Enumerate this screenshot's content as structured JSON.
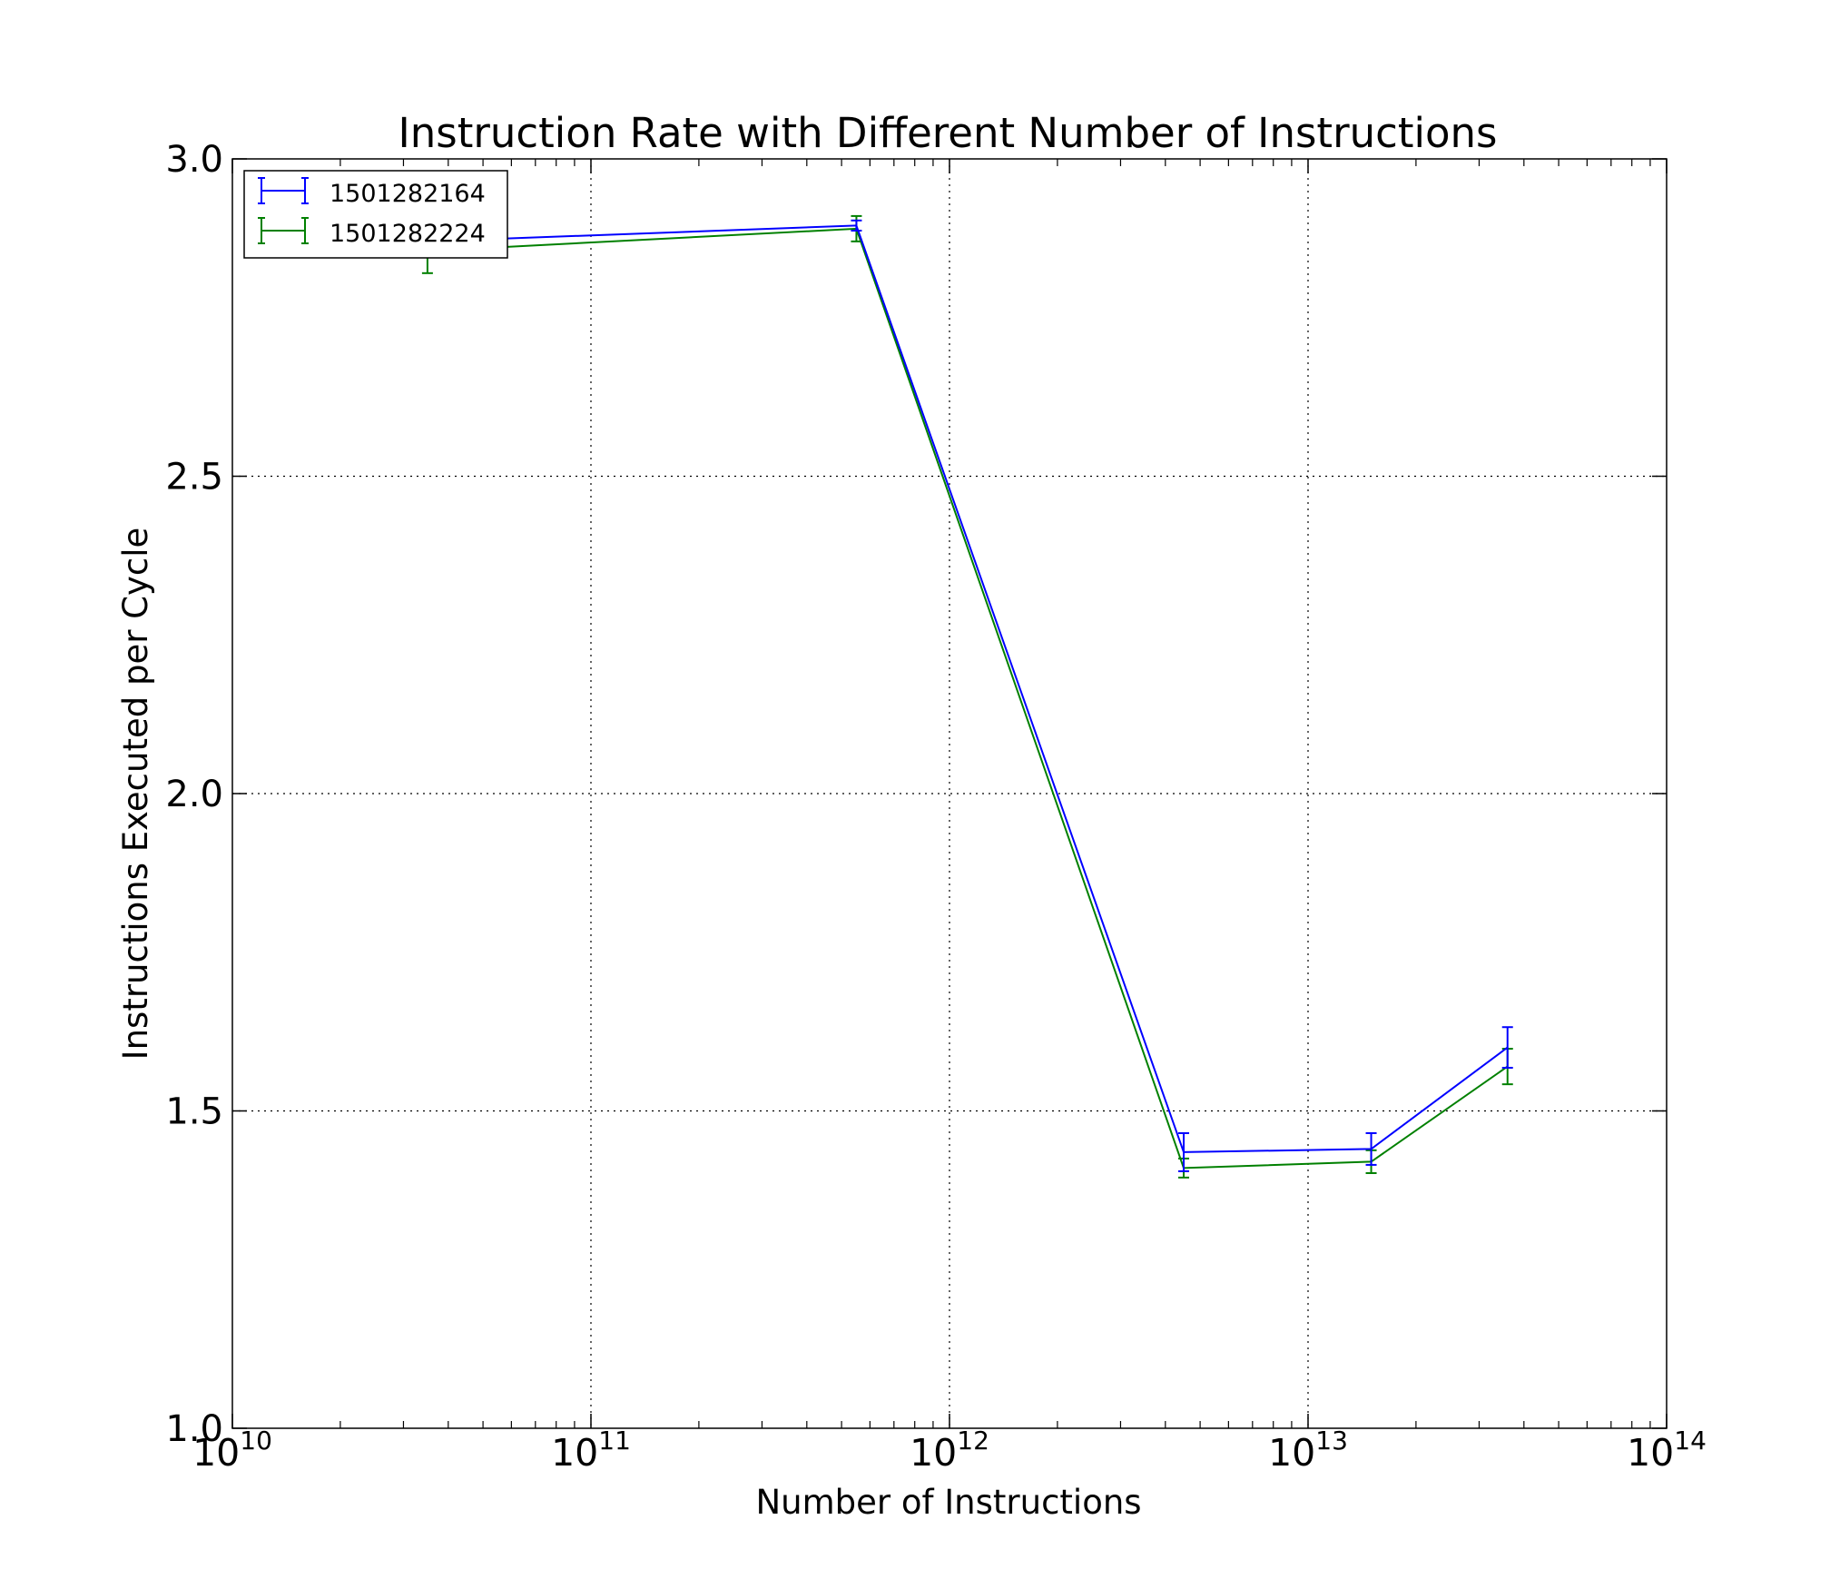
{
  "chart_data": {
    "type": "line",
    "title": "Instruction Rate with Different Number of Instructions",
    "xlabel": "Number of Instructions",
    "ylabel": "Instructions Executed per Cycle",
    "xscale": "log",
    "xlim": [
      10000000000,
      100000000000000
    ],
    "ylim": [
      1.0,
      3.0
    ],
    "x_ticks": [
      {
        "value": 10000000000,
        "base": "10",
        "exp": "10"
      },
      {
        "value": 100000000000,
        "base": "10",
        "exp": "11"
      },
      {
        "value": 1000000000000,
        "base": "10",
        "exp": "12"
      },
      {
        "value": 10000000000000,
        "base": "10",
        "exp": "13"
      },
      {
        "value": 100000000000000,
        "base": "10",
        "exp": "14"
      }
    ],
    "y_ticks": [
      {
        "value": 1.0,
        "label": "1.0"
      },
      {
        "value": 1.5,
        "label": "1.5"
      },
      {
        "value": 2.0,
        "label": "2.0"
      },
      {
        "value": 2.5,
        "label": "2.5"
      },
      {
        "value": 3.0,
        "label": "3.0"
      }
    ],
    "grid": true,
    "legend_position": "top-left",
    "series": [
      {
        "name": "1501282164",
        "color": "#0000ff",
        "x": [
          35000000000,
          550000000000,
          4500000000000,
          15000000000000,
          36000000000000
        ],
        "y": [
          2.87,
          2.895,
          1.435,
          1.44,
          1.6
        ],
        "yerr": [
          0.005,
          0.008,
          0.03,
          0.025,
          0.032
        ]
      },
      {
        "name": "1501282224",
        "color": "#008000",
        "x": [
          35000000000,
          550000000000,
          4500000000000,
          15000000000000,
          36000000000000
        ],
        "y": [
          2.855,
          2.89,
          1.41,
          1.42,
          1.57
        ],
        "yerr": [
          0.035,
          0.02,
          0.015,
          0.018,
          0.028
        ]
      }
    ]
  }
}
